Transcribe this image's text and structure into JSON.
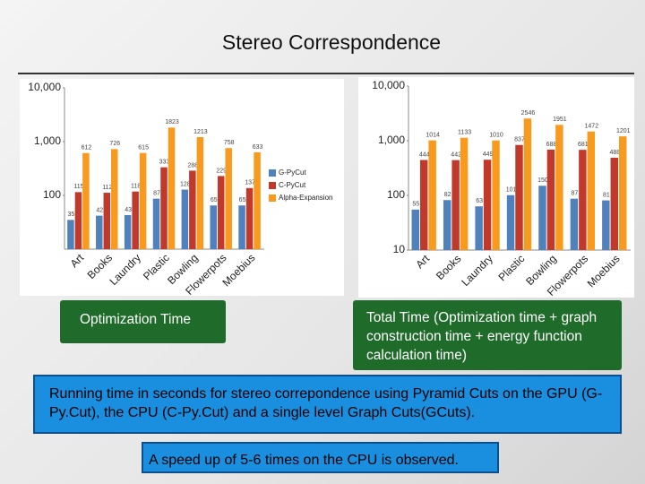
{
  "title": "Stereo Correspondence",
  "chart_data": [
    {
      "type": "bar",
      "log_scale": true,
      "legend": "right",
      "categories": [
        "Art",
        "Books",
        "Laundry",
        "Plastic",
        "Bowling",
        "Flowerpots",
        "Moebius"
      ],
      "series": [
        {
          "name": "G-PyCut",
          "color": "#4f81bd",
          "values": [
            35,
            42,
            43,
            87,
            128,
            65,
            65
          ]
        },
        {
          "name": "C-PyCut",
          "color": "#c0392b",
          "values": [
            115,
            112,
            118,
            333,
            288,
            229,
            137
          ]
        },
        {
          "name": "Alpha-Expansion",
          "color": "#f79a1e",
          "values": [
            612,
            726,
            615,
            1823,
            1213,
            758,
            633
          ]
        }
      ],
      "ylim": [
        10,
        10000
      ],
      "yticks": [
        100,
        {
          "value": 1000,
          "label": "1,000"
        },
        {
          "value": 10000,
          "label": "10,000"
        }
      ]
    },
    {
      "type": "bar",
      "log_scale": true,
      "categories": [
        "Art",
        "Books",
        "Laundry",
        "Plastic",
        "Bowling",
        "Flowerpots",
        "Moebius"
      ],
      "series": [
        {
          "color": "#4f81bd",
          "values": [
            55,
            82,
            63,
            101,
            150,
            87,
            81
          ]
        },
        {
          "color": "#c0392b",
          "values": [
            444,
            442,
            449,
            837,
            688,
            681,
            488
          ]
        },
        {
          "color": "#f79a1e",
          "values": [
            1014,
            1133,
            1010,
            2546,
            1951,
            1472,
            1201
          ]
        }
      ],
      "ylim": [
        10,
        10000
      ],
      "yticks": [
        10,
        100,
        {
          "value": 1000,
          "label": "1,000"
        },
        {
          "value": 10000,
          "label": "10,000"
        }
      ]
    }
  ],
  "captions": [
    "Optimization Time",
    "Total Time (Optimization time + graph construction time + energy function calculation time)"
  ],
  "description": "Running time in seconds for stereo correpondence using Pyramid Cuts on the GPU (G-Py.Cut), the CPU (C-Py.Cut) and a single level Graph Cuts(GCuts).",
  "conclusion": "A speed up of 5-6 times on the CPU is observed."
}
